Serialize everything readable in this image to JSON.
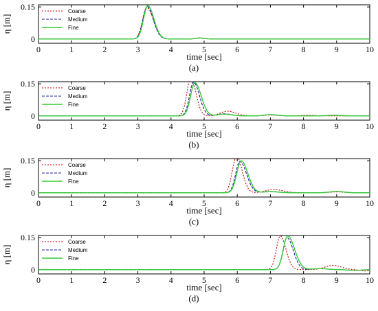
{
  "chart_data": [
    {
      "panel": "a",
      "type": "line",
      "xlabel": "time [sec]",
      "ylabel": "η [m]",
      "xlim": [
        0,
        10
      ],
      "ylim": [
        -0.02,
        0.16
      ],
      "xticks": [
        0,
        1,
        2,
        3,
        4,
        5,
        6,
        7,
        8,
        9,
        10
      ],
      "yticks": [
        0,
        0.15
      ],
      "ytick_labels": [
        "0",
        "0.15"
      ],
      "legend_position": "top-left",
      "series": [
        {
          "name": "Coarse",
          "color": "#cc0000",
          "dash": "dotted",
          "peaks": [
            {
              "t": 3.27,
              "h": 0.148,
              "w1": 0.18,
              "w2": 0.28
            },
            {
              "t": 4.85,
              "h": 0.004,
              "w1": 0.15,
              "w2": 0.2
            }
          ]
        },
        {
          "name": "Medium",
          "color": "#1a1aa6",
          "dash": "dashed",
          "peaks": [
            {
              "t": 3.28,
              "h": 0.152,
              "w1": 0.18,
              "w2": 0.26
            },
            {
              "t": 4.85,
              "h": 0.004,
              "w1": 0.15,
              "w2": 0.2
            }
          ]
        },
        {
          "name": "Fine",
          "color": "#33cc33",
          "dash": "solid",
          "peaks": [
            {
              "t": 3.3,
              "h": 0.156,
              "w1": 0.18,
              "w2": 0.26
            },
            {
              "t": 4.85,
              "h": 0.005,
              "w1": 0.15,
              "w2": 0.2
            }
          ]
        }
      ]
    },
    {
      "panel": "b",
      "type": "line",
      "xlabel": "time [sec]",
      "ylabel": "η [m]",
      "xlim": [
        0,
        10
      ],
      "ylim": [
        -0.02,
        0.16
      ],
      "xticks": [
        0,
        1,
        2,
        3,
        4,
        5,
        6,
        7,
        8,
        9,
        10
      ],
      "yticks": [
        0,
        0.15
      ],
      "ytick_labels": [
        "0",
        "0.15"
      ],
      "legend_position": "top-left",
      "series": [
        {
          "name": "Coarse",
          "color": "#cc0000",
          "dash": "dotted",
          "peaks": [
            {
              "t": 4.6,
              "h": 0.178,
              "w1": 0.17,
              "w2": 0.22
            },
            {
              "t": 5.7,
              "h": 0.022,
              "w1": 0.3,
              "w2": 0.35
            },
            {
              "t": 7.0,
              "h": 0.004,
              "w1": 0.25,
              "w2": 0.3
            },
            {
              "t": 8.1,
              "h": 0.003,
              "w1": 0.25,
              "w2": 0.3
            }
          ]
        },
        {
          "name": "Medium",
          "color": "#1a1aa6",
          "dash": "dashed",
          "peaks": [
            {
              "t": 4.68,
              "h": 0.158,
              "w1": 0.17,
              "w2": 0.25
            },
            {
              "t": 5.6,
              "h": 0.01,
              "w1": 0.25,
              "w2": 0.3
            },
            {
              "t": 7.0,
              "h": 0.005,
              "w1": 0.25,
              "w2": 0.3
            },
            {
              "t": 8.9,
              "h": 0.003,
              "w1": 0.25,
              "w2": 0.3
            }
          ]
        },
        {
          "name": "Fine",
          "color": "#33cc33",
          "dash": "solid",
          "peaks": [
            {
              "t": 4.72,
              "h": 0.155,
              "w1": 0.18,
              "w2": 0.27
            },
            {
              "t": 5.6,
              "h": 0.008,
              "w1": 0.25,
              "w2": 0.3
            },
            {
              "t": 7.0,
              "h": 0.006,
              "w1": 0.25,
              "w2": 0.3
            },
            {
              "t": 8.9,
              "h": 0.003,
              "w1": 0.25,
              "w2": 0.3
            }
          ]
        }
      ]
    },
    {
      "panel": "c",
      "type": "line",
      "xlabel": "time [sec]",
      "ylabel": "η [m]",
      "xlim": [
        0,
        10
      ],
      "ylim": [
        -0.02,
        0.16
      ],
      "xticks": [
        0,
        1,
        2,
        3,
        4,
        5,
        6,
        7,
        8,
        9,
        10
      ],
      "yticks": [
        0,
        0.15
      ],
      "ytick_labels": [
        "0",
        "0.15"
      ],
      "legend_position": "top-left",
      "series": [
        {
          "name": "Coarse",
          "color": "#cc0000",
          "dash": "dotted",
          "peaks": [
            {
              "t": 5.98,
              "h": 0.17,
              "w1": 0.18,
              "w2": 0.24
            },
            {
              "t": 7.1,
              "h": 0.015,
              "w1": 0.35,
              "w2": 0.4
            },
            {
              "t": 9.0,
              "h": 0.004,
              "w1": 0.3,
              "w2": 0.3
            }
          ]
        },
        {
          "name": "Medium",
          "color": "#1a1aa6",
          "dash": "dashed",
          "peaks": [
            {
              "t": 6.08,
              "h": 0.147,
              "w1": 0.18,
              "w2": 0.28
            },
            {
              "t": 7.0,
              "h": 0.006,
              "w1": 0.3,
              "w2": 0.35
            },
            {
              "t": 9.0,
              "h": 0.006,
              "w1": 0.3,
              "w2": 0.3
            }
          ]
        },
        {
          "name": "Fine",
          "color": "#33cc33",
          "dash": "solid",
          "peaks": [
            {
              "t": 6.12,
              "h": 0.15,
              "w1": 0.19,
              "w2": 0.28
            },
            {
              "t": 7.0,
              "h": 0.005,
              "w1": 0.3,
              "w2": 0.35
            },
            {
              "t": 9.0,
              "h": 0.006,
              "w1": 0.3,
              "w2": 0.3
            }
          ]
        }
      ]
    },
    {
      "panel": "d",
      "type": "line",
      "xlabel": "time [sec]",
      "ylabel": "η [m]",
      "xlim": [
        0,
        10
      ],
      "ylim": [
        -0.02,
        0.16
      ],
      "xticks": [
        0,
        1,
        2,
        3,
        4,
        5,
        6,
        7,
        8,
        9,
        10
      ],
      "yticks": [
        0,
        0.15
      ],
      "ytick_labels": [
        "0",
        "0.15"
      ],
      "legend_position": "top-left",
      "series": [
        {
          "name": "Coarse",
          "color": "#cc0000",
          "dash": "dotted",
          "peaks": [
            {
              "t": 7.3,
              "h": 0.158,
              "w1": 0.17,
              "w2": 0.24
            },
            {
              "t": 8.9,
              "h": 0.02,
              "w1": 0.35,
              "w2": 0.35
            },
            {
              "t": 9.85,
              "h": -0.006,
              "w1": 0.2,
              "w2": 0.3
            }
          ]
        },
        {
          "name": "Medium",
          "color": "#1a1aa6",
          "dash": "dashed",
          "peaks": [
            {
              "t": 7.5,
              "h": 0.15,
              "w1": 0.17,
              "w2": 0.27
            },
            {
              "t": 8.5,
              "h": 0.005,
              "w1": 0.3,
              "w2": 0.3
            },
            {
              "t": 9.5,
              "h": -0.004,
              "w1": 0.2,
              "w2": 0.3
            }
          ]
        },
        {
          "name": "Fine",
          "color": "#33cc33",
          "dash": "solid",
          "peaks": [
            {
              "t": 7.52,
              "h": 0.158,
              "w1": 0.18,
              "w2": 0.3
            },
            {
              "t": 8.5,
              "h": 0.005,
              "w1": 0.3,
              "w2": 0.3
            },
            {
              "t": 9.5,
              "h": -0.004,
              "w1": 0.2,
              "w2": 0.3
            }
          ]
        }
      ]
    }
  ],
  "panel_labels": [
    "(a)",
    "(b)",
    "(c)",
    "(d)"
  ]
}
